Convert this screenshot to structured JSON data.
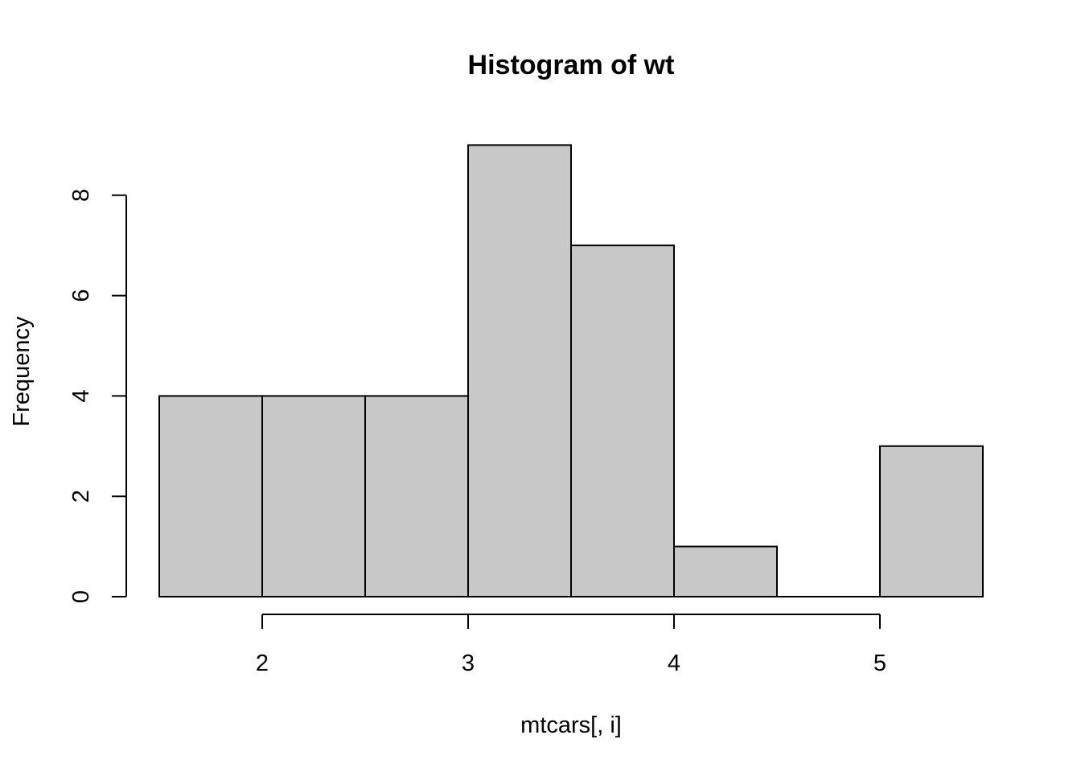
{
  "chart_data": {
    "type": "bar",
    "title": "Histogram of wt",
    "xlabel": "mtcars[, i]",
    "ylabel": "Frequency",
    "bins": [
      {
        "from": 1.5,
        "to": 2.0,
        "count": 4
      },
      {
        "from": 2.0,
        "to": 2.5,
        "count": 4
      },
      {
        "from": 2.5,
        "to": 3.0,
        "count": 4
      },
      {
        "from": 3.0,
        "to": 3.5,
        "count": 9
      },
      {
        "from": 3.5,
        "to": 4.0,
        "count": 7
      },
      {
        "from": 4.0,
        "to": 4.5,
        "count": 1
      },
      {
        "from": 4.5,
        "to": 5.0,
        "count": 0
      },
      {
        "from": 5.0,
        "to": 5.5,
        "count": 3
      }
    ],
    "x_ticks": [
      "2",
      "3",
      "4",
      "5"
    ],
    "y_ticks": [
      "0",
      "2",
      "4",
      "6",
      "8"
    ],
    "xlim": [
      1.5,
      5.5
    ],
    "ylim": [
      0,
      9
    ],
    "grid": false,
    "colors": {
      "bar_fill": "#c8c8c8",
      "bar_stroke": "#000000",
      "axis": "#000000",
      "background": "#ffffff"
    }
  }
}
